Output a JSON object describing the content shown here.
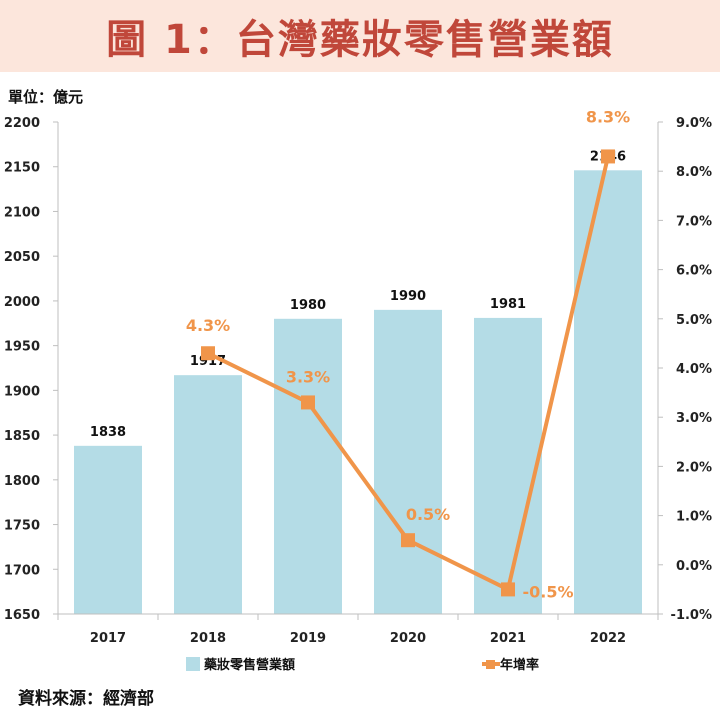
{
  "title": "圖 1：台灣藥妝零售營業額",
  "unit_label": "單位：億元",
  "source_label": "資料來源：經濟部",
  "colors": {
    "bar": "#b4dce6",
    "line": "#f0954a",
    "line_label": "#f0954a",
    "axis": "#bfbfbf",
    "title": "#c0473a",
    "banner": "#fce6dc"
  },
  "chart_data": {
    "type": "bar",
    "categories": [
      "2017",
      "2018",
      "2019",
      "2020",
      "2021",
      "2022"
    ],
    "series": [
      {
        "name": "藥妝零售營業額",
        "type": "bar",
        "axis": "left",
        "values": [
          1838,
          1917,
          1980,
          1990,
          1981,
          2146
        ],
        "value_labels": [
          "1838",
          "1917",
          "1980",
          "1990",
          "1981",
          "2146"
        ]
      },
      {
        "name": "年增率",
        "type": "line",
        "axis": "right",
        "values": [
          null,
          4.3,
          3.3,
          0.5,
          -0.5,
          8.3
        ],
        "value_labels": [
          "",
          "4.3%",
          "3.3%",
          "0.5%",
          "-0.5%",
          "8.3%"
        ]
      }
    ],
    "y_left": {
      "lim": [
        1650,
        2200
      ],
      "ticks": [
        "1650",
        "1700",
        "1750",
        "1800",
        "1850",
        "1900",
        "1950",
        "2000",
        "2050",
        "2100",
        "2150",
        "2200"
      ]
    },
    "y_right": {
      "lim": [
        -1.0,
        9.0
      ],
      "ticks": [
        "-1.0%",
        "0.0%",
        "1.0%",
        "2.0%",
        "3.0%",
        "4.0%",
        "5.0%",
        "6.0%",
        "7.0%",
        "8.0%",
        "9.0%"
      ]
    },
    "legend_position": "bottom",
    "grid": false
  }
}
